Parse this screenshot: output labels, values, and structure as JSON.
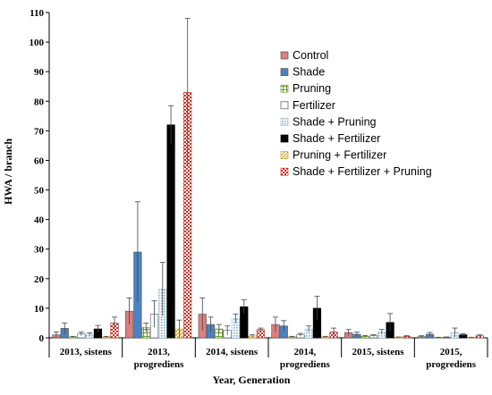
{
  "chart_data": {
    "type": "bar",
    "title": "",
    "xlabel": "Year, Generation",
    "ylabel": "HWA / branch",
    "ylim": [
      0,
      110
    ],
    "yticks": [
      0,
      10,
      20,
      30,
      40,
      50,
      60,
      70,
      80,
      90,
      100,
      110
    ],
    "grid": false,
    "legend_position": "top-right",
    "categories": [
      [
        "2013, sistens"
      ],
      [
        "2013,",
        "progrediens"
      ],
      [
        "2014, sistens"
      ],
      [
        "2014,",
        "progrediens"
      ],
      [
        "2015, sistens"
      ],
      [
        "2015,",
        "progrediens"
      ]
    ],
    "series": [
      {
        "name": "Control",
        "values": [
          1.0,
          9.0,
          8.0,
          4.5,
          1.8,
          0.4
        ],
        "errors": [
          1.0,
          4.5,
          5.5,
          2.5,
          1.0,
          0.3
        ],
        "pattern": "solid",
        "color": "#d98080"
      },
      {
        "name": "Shade",
        "values": [
          3.2,
          29.0,
          4.5,
          4.0,
          1.2,
          1.2
        ],
        "errors": [
          1.8,
          17.0,
          2.5,
          1.8,
          0.7,
          0.6
        ],
        "pattern": "solid",
        "color": "#4f81bd"
      },
      {
        "name": "Pruning",
        "values": [
          0.3,
          3.5,
          3.0,
          0.3,
          0.5,
          0.1
        ],
        "errors": [
          0.2,
          1.5,
          1.5,
          0.2,
          0.3,
          0.1
        ],
        "pattern": "grid",
        "color": "#70a035"
      },
      {
        "name": "Fertilizer",
        "values": [
          1.3,
          8.0,
          2.5,
          1.0,
          0.7,
          0.2
        ],
        "errors": [
          0.6,
          4.5,
          1.5,
          0.5,
          0.3,
          0.1
        ],
        "pattern": "solid",
        "color": "#ffffff"
      },
      {
        "name": "Shade + Pruning",
        "values": [
          1.2,
          16.5,
          6.5,
          3.0,
          2.0,
          1.8
        ],
        "errors": [
          0.5,
          9.0,
          1.5,
          1.0,
          0.8,
          1.5
        ],
        "pattern": "dots",
        "color": "#9ec3de"
      },
      {
        "name": "Shade + Fertilizer",
        "values": [
          3.0,
          72.0,
          10.5,
          10.0,
          5.2,
          1.0
        ],
        "errors": [
          1.2,
          6.5,
          2.3,
          4.0,
          3.0,
          0.4
        ],
        "pattern": "solid",
        "color": "#000000"
      },
      {
        "name": "Pruning + Fertilizer",
        "values": [
          0.3,
          3.0,
          0.6,
          0.3,
          0.2,
          0.1
        ],
        "errors": [
          0.2,
          3.0,
          0.4,
          0.2,
          0.1,
          0.1
        ],
        "pattern": "diag",
        "color": "#d4a020"
      },
      {
        "name": "Shade + Fertilizer + Pruning",
        "values": [
          5.0,
          83.0,
          2.8,
          2.0,
          0.5,
          0.7
        ],
        "errors": [
          2.0,
          25.0,
          0.5,
          1.3,
          0.2,
          0.3
        ],
        "pattern": "checker",
        "color": "#c0392b"
      }
    ]
  }
}
